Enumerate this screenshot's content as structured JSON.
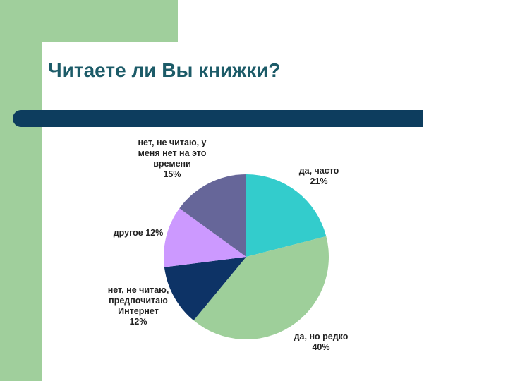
{
  "slide": {
    "title": "Читаете ли Вы книжки?"
  },
  "colors": {
    "background": "#ffffff",
    "accent_green": "#a0cf9c",
    "title": "#1c5b68",
    "bar": "#0d3d5e"
  },
  "chart_data": {
    "type": "pie",
    "start_angle_deg": 0,
    "direction": "clockwise",
    "slices": [
      {
        "label_lines": [
          "да, часто",
          "21%"
        ],
        "value": 21,
        "color": "#33cccc"
      },
      {
        "label_lines": [
          "да, но редко",
          "40%"
        ],
        "value": 40,
        "color": "#9ecf9a"
      },
      {
        "label_lines": [
          "нет, не читаю,",
          "предпочитаю",
          "Интернет",
          "12%"
        ],
        "value": 12,
        "color": "#0d3366"
      },
      {
        "label_lines": [
          "другое 12%"
        ],
        "value": 12,
        "color": "#cc99ff"
      },
      {
        "label_lines": [
          "нет, не читаю, у",
          "меня нет на это",
          "времени",
          "15%"
        ],
        "value": 15,
        "color": "#666699"
      }
    ]
  }
}
